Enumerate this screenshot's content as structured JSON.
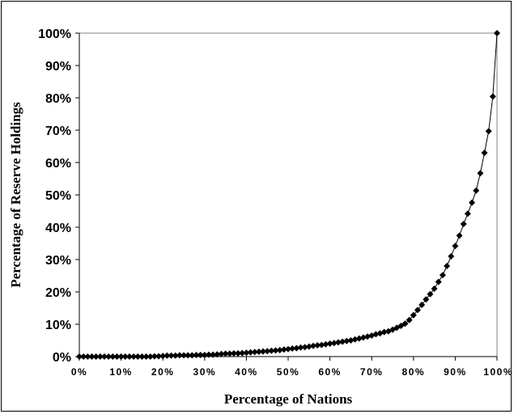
{
  "chart_data": {
    "type": "scatter",
    "title": "",
    "xlabel": "Percentage of Nations",
    "ylabel": "Percentage of Reserve Holdings",
    "xlim": [
      0,
      100
    ],
    "ylim": [
      0,
      100
    ],
    "x_ticks": [
      "0%",
      "10%",
      "20%",
      "30%",
      "40%",
      "50%",
      "60%",
      "70%",
      "80%",
      "90%",
      "100%"
    ],
    "y_ticks": [
      "0%",
      "10%",
      "20%",
      "30%",
      "40%",
      "50%",
      "60%",
      "70%",
      "80%",
      "90%",
      "100%"
    ],
    "grid": false,
    "legend": "none",
    "marker_color": "#000000",
    "marker": "diamond",
    "connected": true,
    "series": [
      {
        "x": [
          0,
          1,
          2,
          3,
          4,
          5,
          6,
          7,
          8,
          9,
          10,
          11,
          12,
          13,
          14,
          15,
          16,
          17,
          18,
          19,
          20,
          21,
          22,
          23,
          24,
          25,
          26,
          27,
          28,
          29,
          30,
          31,
          32,
          33,
          34,
          35,
          36,
          37,
          38,
          39,
          40,
          41,
          42,
          43,
          44,
          45,
          46,
          47,
          48,
          49,
          50,
          51,
          52,
          53,
          54,
          55,
          56,
          57,
          58,
          59,
          60,
          61,
          62,
          63,
          64,
          65,
          66,
          67,
          68,
          69,
          70,
          71,
          72,
          73,
          74,
          75,
          76,
          77,
          78,
          79,
          80,
          81,
          82,
          83,
          84,
          85,
          86,
          87,
          88,
          89,
          90,
          91,
          92,
          93,
          94,
          95,
          96,
          97,
          98,
          99,
          100
        ],
        "y": [
          0,
          0,
          0,
          0,
          0,
          0,
          0,
          0,
          0,
          0,
          0,
          0,
          0,
          0,
          0,
          0,
          0,
          0,
          0.1,
          0.1,
          0.2,
          0.3,
          0.3,
          0.3,
          0.4,
          0.4,
          0.4,
          0.4,
          0.5,
          0.5,
          0.5,
          0.6,
          0.6,
          0.7,
          0.8,
          0.9,
          0.9,
          1.0,
          1.0,
          1.1,
          1.2,
          1.3,
          1.4,
          1.5,
          1.6,
          1.7,
          1.8,
          1.9,
          2.0,
          2.2,
          2.3,
          2.5,
          2.6,
          2.8,
          2.9,
          3.1,
          3.3,
          3.5,
          3.6,
          3.8,
          4.0,
          4.2,
          4.4,
          4.6,
          4.8,
          5.0,
          5.3,
          5.6,
          5.9,
          6.2,
          6.5,
          6.9,
          7.2,
          7.6,
          7.8,
          8.3,
          8.9,
          9.5,
          10.2,
          11.3,
          12.8,
          14.4,
          16.0,
          17.7,
          19.3,
          21.0,
          23.1,
          25.2,
          28.0,
          31.0,
          34.2,
          37.4,
          41.0,
          44.2,
          47.6,
          51.3,
          56.7,
          63.0,
          69.7,
          80.4,
          100
        ]
      }
    ]
  }
}
